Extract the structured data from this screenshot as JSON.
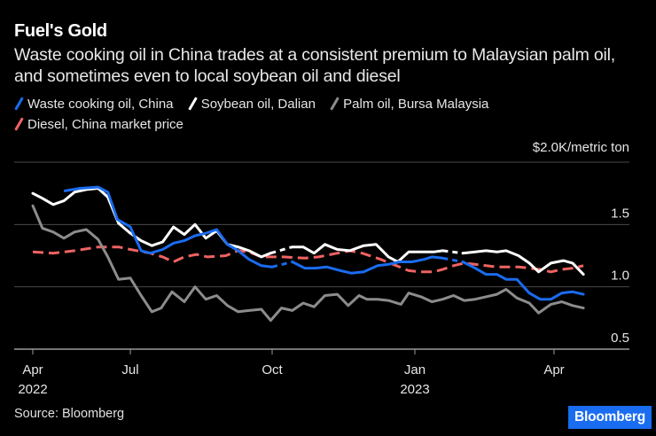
{
  "header": {
    "title": "Fuel's Gold",
    "subtitle": "Waste cooking oil in China trades at a consistent premium to Malaysian palm oil, and sometimes even to local soybean oil and diesel"
  },
  "legend": [
    {
      "label": "Waste cooking oil, China",
      "color": "#1a6cf0"
    },
    {
      "label": "Soybean oil, Dalian",
      "color": "#ffffff"
    },
    {
      "label": "Palm oil, Bursa Malaysia",
      "color": "#8c8c8c"
    },
    {
      "label": "Diesel, China market price",
      "color": "#f06262"
    }
  ],
  "footer": {
    "source": "Source: Bloomberg",
    "brand": "Bloomberg",
    "brand_color": "#1a6cf0"
  },
  "chart_data": {
    "type": "line",
    "title": "Fuel's Gold",
    "unit_label": "$2.0K/metric ton",
    "ylabel": "USD thousand per metric ton",
    "ylim": [
      0.5,
      2.0
    ],
    "yticks": [
      {
        "value": 2.0,
        "label": "$2.0K/metric ton"
      },
      {
        "value": 1.5,
        "label": "1.5"
      },
      {
        "value": 1.0,
        "label": "1.0"
      },
      {
        "value": 0.5,
        "label": "0.5"
      }
    ],
    "xticks": [
      {
        "date": "2022-04-01",
        "label": "Apr",
        "sublabel": "2022"
      },
      {
        "date": "2022-07-01",
        "label": "Jul",
        "sublabel": ""
      },
      {
        "date": "2022-10-01",
        "label": "Oct",
        "sublabel": ""
      },
      {
        "date": "2023-01-01",
        "label": "Jan",
        "sublabel": "2023"
      },
      {
        "date": "2023-04-01",
        "label": "Apr",
        "sublabel": ""
      }
    ],
    "grid": true,
    "legend_position": "top-left",
    "series": [
      {
        "name": "Diesel, China market price",
        "color": "#f06262",
        "style": "dashed",
        "points": [
          [
            "2022-04-01",
            1.28
          ],
          [
            "2022-04-20",
            1.27
          ],
          [
            "2022-05-10",
            1.29
          ],
          [
            "2022-06-01",
            1.32
          ],
          [
            "2022-06-20",
            1.32
          ],
          [
            "2022-07-01",
            1.3
          ],
          [
            "2022-07-14",
            1.27
          ],
          [
            "2022-07-22",
            1.24
          ],
          [
            "2022-07-29",
            1.2
          ],
          [
            "2022-08-05",
            1.24
          ],
          [
            "2022-08-13",
            1.26
          ],
          [
            "2022-08-20",
            1.24
          ],
          [
            "2022-09-01",
            1.25
          ],
          [
            "2022-09-09",
            1.29
          ],
          [
            "2022-09-16",
            1.28
          ],
          [
            "2022-09-24",
            1.24
          ],
          [
            "2022-10-01",
            1.24
          ],
          [
            "2022-10-08",
            1.24
          ],
          [
            "2022-10-22",
            1.23
          ],
          [
            "2022-10-31",
            1.24
          ],
          [
            "2022-11-12",
            1.27
          ],
          [
            "2022-11-20",
            1.29
          ],
          [
            "2022-11-28",
            1.27
          ],
          [
            "2022-12-10",
            1.22
          ],
          [
            "2022-12-18",
            1.18
          ],
          [
            "2022-12-28",
            1.13
          ],
          [
            "2023-01-05",
            1.12
          ],
          [
            "2023-01-13",
            1.12
          ],
          [
            "2023-01-19",
            1.14
          ],
          [
            "2023-01-26",
            1.17
          ],
          [
            "2023-02-02",
            1.19
          ],
          [
            "2023-02-09",
            1.18
          ],
          [
            "2023-02-16",
            1.17
          ],
          [
            "2023-02-23",
            1.16
          ],
          [
            "2023-03-01",
            1.16
          ],
          [
            "2023-03-09",
            1.16
          ],
          [
            "2023-03-16",
            1.15
          ],
          [
            "2023-03-23",
            1.14
          ],
          [
            "2023-03-30",
            1.12
          ],
          [
            "2023-04-06",
            1.14
          ],
          [
            "2023-04-13",
            1.15
          ],
          [
            "2023-04-20",
            1.17
          ]
        ]
      },
      {
        "name": "Palm oil, Bursa Malaysia",
        "color": "#8c8c8c",
        "style": "solid",
        "points": [
          [
            "2022-04-01",
            1.65
          ],
          [
            "2022-04-10",
            1.47
          ],
          [
            "2022-04-20",
            1.44
          ],
          [
            "2022-04-30",
            1.39
          ],
          [
            "2022-05-10",
            1.44
          ],
          [
            "2022-05-21",
            1.46
          ],
          [
            "2022-06-01",
            1.38
          ],
          [
            "2022-06-10",
            1.24
          ],
          [
            "2022-06-20",
            1.06
          ],
          [
            "2022-07-01",
            1.07
          ],
          [
            "2022-07-08",
            0.93
          ],
          [
            "2022-07-15",
            0.8
          ],
          [
            "2022-07-21",
            0.83
          ],
          [
            "2022-07-28",
            0.96
          ],
          [
            "2022-08-05",
            0.88
          ],
          [
            "2022-08-12",
            1.0
          ],
          [
            "2022-08-19",
            0.9
          ],
          [
            "2022-08-26",
            0.93
          ],
          [
            "2022-09-02",
            0.85
          ],
          [
            "2022-09-09",
            0.8
          ],
          [
            "2022-09-16",
            0.81
          ],
          [
            "2022-09-24",
            0.82
          ],
          [
            "2022-09-30",
            0.73
          ],
          [
            "2022-10-07",
            0.83
          ],
          [
            "2022-10-14",
            0.81
          ],
          [
            "2022-10-21",
            0.87
          ],
          [
            "2022-10-28",
            0.84
          ],
          [
            "2022-11-04",
            0.93
          ],
          [
            "2022-11-12",
            0.94
          ],
          [
            "2022-11-19",
            0.85
          ],
          [
            "2022-11-26",
            0.93
          ],
          [
            "2022-12-01",
            0.9
          ],
          [
            "2022-12-08",
            0.9
          ],
          [
            "2022-12-15",
            0.89
          ],
          [
            "2022-12-23",
            0.86
          ],
          [
            "2022-12-28",
            0.95
          ],
          [
            "2023-01-05",
            0.92
          ],
          [
            "2023-01-12",
            0.88
          ],
          [
            "2023-01-19",
            0.9
          ],
          [
            "2023-01-26",
            0.93
          ],
          [
            "2023-02-02",
            0.89
          ],
          [
            "2023-02-09",
            0.9
          ],
          [
            "2023-02-16",
            0.92
          ],
          [
            "2023-02-23",
            0.94
          ],
          [
            "2023-03-01",
            0.98
          ],
          [
            "2023-03-08",
            0.91
          ],
          [
            "2023-03-16",
            0.87
          ],
          [
            "2023-03-22",
            0.79
          ],
          [
            "2023-03-30",
            0.86
          ],
          [
            "2023-04-06",
            0.88
          ],
          [
            "2023-04-13",
            0.85
          ],
          [
            "2023-04-20",
            0.83
          ]
        ]
      },
      {
        "name": "Soybean oil, Dalian",
        "color": "#ffffff",
        "style": "solid",
        "gaps": [
          [
            "2022-09-30",
            "2022-10-14"
          ],
          [
            "2023-01-19",
            "2023-02-01"
          ]
        ],
        "points": [
          [
            "2022-04-01",
            1.75
          ],
          [
            "2022-04-10",
            1.71
          ],
          [
            "2022-04-20",
            1.66
          ],
          [
            "2022-04-30",
            1.69
          ],
          [
            "2022-05-10",
            1.76
          ],
          [
            "2022-05-21",
            1.78
          ],
          [
            "2022-06-01",
            1.79
          ],
          [
            "2022-06-10",
            1.72
          ],
          [
            "2022-06-20",
            1.51
          ],
          [
            "2022-07-01",
            1.43
          ],
          [
            "2022-07-08",
            1.37
          ],
          [
            "2022-07-15",
            1.33
          ],
          [
            "2022-07-22",
            1.36
          ],
          [
            "2022-07-29",
            1.48
          ],
          [
            "2022-08-05",
            1.42
          ],
          [
            "2022-08-12",
            1.5
          ],
          [
            "2022-08-19",
            1.39
          ],
          [
            "2022-08-26",
            1.45
          ],
          [
            "2022-09-02",
            1.34
          ],
          [
            "2022-09-09",
            1.32
          ],
          [
            "2022-09-16",
            1.29
          ],
          [
            "2022-09-24",
            1.24
          ],
          [
            "2022-09-30",
            1.27
          ],
          [
            "2022-10-14",
            1.32
          ],
          [
            "2022-10-21",
            1.32
          ],
          [
            "2022-10-28",
            1.27
          ],
          [
            "2022-11-04",
            1.34
          ],
          [
            "2022-11-12",
            1.3
          ],
          [
            "2022-11-20",
            1.29
          ],
          [
            "2022-11-29",
            1.33
          ],
          [
            "2022-12-07",
            1.34
          ],
          [
            "2022-12-15",
            1.24
          ],
          [
            "2022-12-21",
            1.2
          ],
          [
            "2022-12-28",
            1.28
          ],
          [
            "2023-01-05",
            1.28
          ],
          [
            "2023-01-13",
            1.28
          ],
          [
            "2023-01-19",
            1.29
          ],
          [
            "2023-02-01",
            1.27
          ],
          [
            "2023-02-09",
            1.28
          ],
          [
            "2023-02-16",
            1.29
          ],
          [
            "2023-02-23",
            1.28
          ],
          [
            "2023-03-01",
            1.29
          ],
          [
            "2023-03-09",
            1.25
          ],
          [
            "2023-03-16",
            1.19
          ],
          [
            "2023-03-22",
            1.12
          ],
          [
            "2023-03-30",
            1.19
          ],
          [
            "2023-04-07",
            1.21
          ],
          [
            "2023-04-13",
            1.19
          ],
          [
            "2023-04-20",
            1.1
          ]
        ]
      },
      {
        "name": "Waste cooking oil, China",
        "color": "#1a6cf0",
        "style": "solid",
        "gaps": [
          [
            "2022-10-01",
            "2022-10-14"
          ],
          [
            "2023-01-19",
            "2023-02-01"
          ]
        ],
        "points": [
          [
            "2022-05-01",
            1.77
          ],
          [
            "2022-05-15",
            1.79
          ],
          [
            "2022-06-01",
            1.8
          ],
          [
            "2022-06-10",
            1.76
          ],
          [
            "2022-06-19",
            1.54
          ],
          [
            "2022-07-01",
            1.48
          ],
          [
            "2022-07-08",
            1.29
          ],
          [
            "2022-07-14",
            1.27
          ],
          [
            "2022-07-22",
            1.3
          ],
          [
            "2022-07-29",
            1.35
          ],
          [
            "2022-08-05",
            1.37
          ],
          [
            "2022-08-12",
            1.41
          ],
          [
            "2022-08-19",
            1.43
          ],
          [
            "2022-08-26",
            1.46
          ],
          [
            "2022-09-02",
            1.34
          ],
          [
            "2022-09-09",
            1.29
          ],
          [
            "2022-09-16",
            1.22
          ],
          [
            "2022-09-24",
            1.17
          ],
          [
            "2022-10-01",
            1.16
          ],
          [
            "2022-10-14",
            1.2
          ],
          [
            "2022-10-22",
            1.15
          ],
          [
            "2022-10-29",
            1.15
          ],
          [
            "2022-11-05",
            1.16
          ],
          [
            "2022-11-14",
            1.13
          ],
          [
            "2022-11-21",
            1.11
          ],
          [
            "2022-11-29",
            1.12
          ],
          [
            "2022-12-08",
            1.17
          ],
          [
            "2022-12-15",
            1.18
          ],
          [
            "2022-12-22",
            1.2
          ],
          [
            "2022-12-30",
            1.2
          ],
          [
            "2023-01-07",
            1.22
          ],
          [
            "2023-01-12",
            1.24
          ],
          [
            "2023-01-19",
            1.23
          ],
          [
            "2023-02-01",
            1.2
          ],
          [
            "2023-02-09",
            1.15
          ],
          [
            "2023-02-16",
            1.1
          ],
          [
            "2023-02-23",
            1.1
          ],
          [
            "2023-03-01",
            1.06
          ],
          [
            "2023-03-08",
            1.06
          ],
          [
            "2023-03-16",
            0.95
          ],
          [
            "2023-03-23",
            0.9
          ],
          [
            "2023-03-30",
            0.9
          ],
          [
            "2023-04-06",
            0.95
          ],
          [
            "2023-04-13",
            0.96
          ],
          [
            "2023-04-20",
            0.94
          ]
        ]
      }
    ]
  }
}
